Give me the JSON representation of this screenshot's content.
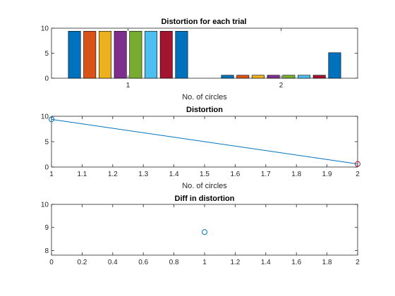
{
  "figure": {
    "background": "#ffffff"
  },
  "chart_data": [
    {
      "type": "bar",
      "title": "Distortion for each trial",
      "xlabel": "No. of circles",
      "ylabel": "",
      "categories": [
        "1",
        "2"
      ],
      "yticks": [
        "0",
        "5",
        "10"
      ],
      "ylim": [
        0,
        10
      ],
      "series": [
        {
          "values": [
            9.4,
            0.6
          ],
          "color": "#0072BD"
        },
        {
          "values": [
            9.4,
            0.6
          ],
          "color": "#D95319"
        },
        {
          "values": [
            9.4,
            0.6
          ],
          "color": "#EDB120"
        },
        {
          "values": [
            9.4,
            0.6
          ],
          "color": "#7E2F8E"
        },
        {
          "values": [
            9.4,
            0.6
          ],
          "color": "#77AC30"
        },
        {
          "values": [
            9.4,
            0.6
          ],
          "color": "#4DBEEE"
        },
        {
          "values": [
            9.4,
            0.6
          ],
          "color": "#A2142F"
        },
        {
          "values": [
            9.4,
            5.1
          ],
          "color": "#0072BD"
        }
      ]
    },
    {
      "type": "line",
      "title": "Distortion",
      "xlabel": "No. of circles",
      "ylabel": "",
      "x": [
        1,
        2
      ],
      "y": [
        9.4,
        0.6
      ],
      "xlim": [
        1,
        2
      ],
      "ylim": [
        0,
        10
      ],
      "xticks": [
        "1",
        "1.1",
        "1.2",
        "1.3",
        "1.4",
        "1.5",
        "1.6",
        "1.7",
        "1.8",
        "1.9",
        "2"
      ],
      "yticks": [
        "0",
        "5",
        "10"
      ],
      "line_color": "#0072BD",
      "markers": [
        {
          "x": 1,
          "y": 9.4,
          "color": "#0072BD"
        },
        {
          "x": 2,
          "y": 0.6,
          "color": "#A2142F"
        }
      ]
    },
    {
      "type": "scatter",
      "title": "Diff in distortion",
      "xlabel": "",
      "ylabel": "",
      "x": [
        1
      ],
      "y": [
        8.8
      ],
      "xlim": [
        0,
        2
      ],
      "ylim": [
        7.8,
        10
      ],
      "xticks": [
        "0",
        "0.2",
        "0.4",
        "0.6",
        "0.8",
        "1",
        "1.2",
        "1.4",
        "1.6",
        "1.8",
        "2"
      ],
      "yticks": [
        "8",
        "9",
        "10"
      ],
      "marker_color": "#0072BD"
    }
  ]
}
